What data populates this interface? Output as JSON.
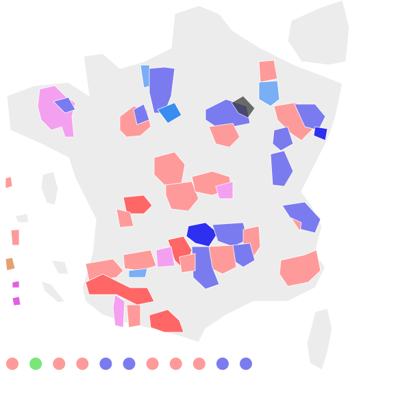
{
  "legend": {
    "colors": [
      "#ff9a9a",
      "#7ae67a",
      "#ff9a9a",
      "#ff9a9a",
      "#7b7bf0",
      "#7b7bf0",
      "#ff9a9a",
      "#ff9a9a",
      "#ff9a9a",
      "#7b7bf0",
      "#7b7bf0"
    ]
  }
}
